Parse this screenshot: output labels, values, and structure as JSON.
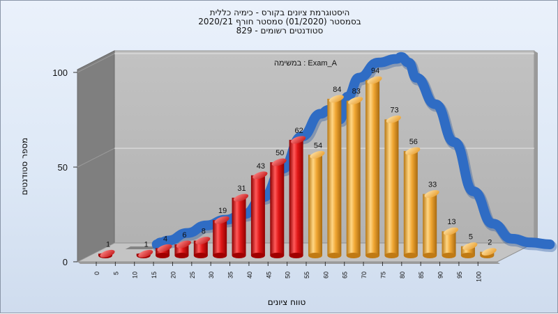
{
  "chart_data": {
    "type": "bar",
    "title_lines": [
      "היסטוגרמת ציונים בקורס - כימיה כללית",
      "בסמסטר  (01/2020)  סמסטר חורף 2020/21",
      "סטודנטים רשומים - 829"
    ],
    "xlabel": "טווח ציונים",
    "ylabel": "מספר סטודנטים",
    "annotation": "במשימה : Exam_A",
    "x_ticks": [
      "0",
      "5",
      "10",
      "15",
      "20",
      "25",
      "30",
      "35",
      "40",
      "45",
      "50",
      "55",
      "60",
      "65",
      "70",
      "75",
      "80",
      "85",
      "90",
      "95",
      "100"
    ],
    "y_ticks": [
      "0",
      "50",
      "100"
    ],
    "ylim": [
      0,
      100
    ],
    "bars": [
      {
        "label": "0",
        "value": 1,
        "color": "red"
      },
      {
        "label": "10",
        "value": 1,
        "color": "red"
      },
      {
        "label": "15",
        "value": 4,
        "color": "red"
      },
      {
        "label": "20",
        "value": 6,
        "color": "red"
      },
      {
        "label": "25",
        "value": 8,
        "color": "red"
      },
      {
        "label": "30",
        "value": 19,
        "color": "red"
      },
      {
        "label": "35",
        "value": 31,
        "color": "red"
      },
      {
        "label": "40",
        "value": 43,
        "color": "red"
      },
      {
        "label": "45",
        "value": 50,
        "color": "red"
      },
      {
        "label": "50",
        "value": 62,
        "color": "red"
      },
      {
        "label": "55",
        "value": 54,
        "color": "orange"
      },
      {
        "label": "60",
        "value": 84,
        "color": "orange"
      },
      {
        "label": "65",
        "value": 83,
        "color": "orange"
      },
      {
        "label": "70",
        "value": 94,
        "color": "orange"
      },
      {
        "label": "75",
        "value": 73,
        "color": "orange"
      },
      {
        "label": "80",
        "value": 56,
        "color": "orange"
      },
      {
        "label": "85",
        "value": 33,
        "color": "orange"
      },
      {
        "label": "90",
        "value": 13,
        "color": "orange"
      },
      {
        "label": "95",
        "value": 5,
        "color": "orange"
      },
      {
        "label": "100",
        "value": 2,
        "color": "orange"
      }
    ],
    "curve_points": [
      [
        12,
        0
      ],
      [
        13,
        1
      ],
      [
        15,
        2
      ],
      [
        20,
        6
      ],
      [
        25,
        10
      ],
      [
        30,
        13
      ],
      [
        35,
        16
      ],
      [
        40,
        25
      ],
      [
        45,
        40
      ],
      [
        50,
        57
      ],
      [
        55,
        69
      ],
      [
        57,
        71
      ],
      [
        60,
        66
      ],
      [
        62,
        78
      ],
      [
        65,
        88
      ],
      [
        70,
        96
      ],
      [
        75,
        98
      ],
      [
        76,
        99
      ],
      [
        78,
        96
      ],
      [
        80,
        88
      ],
      [
        85,
        74
      ],
      [
        90,
        54
      ],
      [
        95,
        28
      ],
      [
        100,
        11
      ],
      [
        105,
        3
      ],
      [
        110,
        1
      ],
      [
        115,
        0
      ]
    ],
    "colors": {
      "red": "#d81818",
      "orange": "#f0a632",
      "curve": "#2f6cc4",
      "back_wall": "#b9b9b9",
      "left_wall": "#7f7f7f",
      "floor": "#c4c4c4"
    },
    "grid": true,
    "legend": "none"
  }
}
